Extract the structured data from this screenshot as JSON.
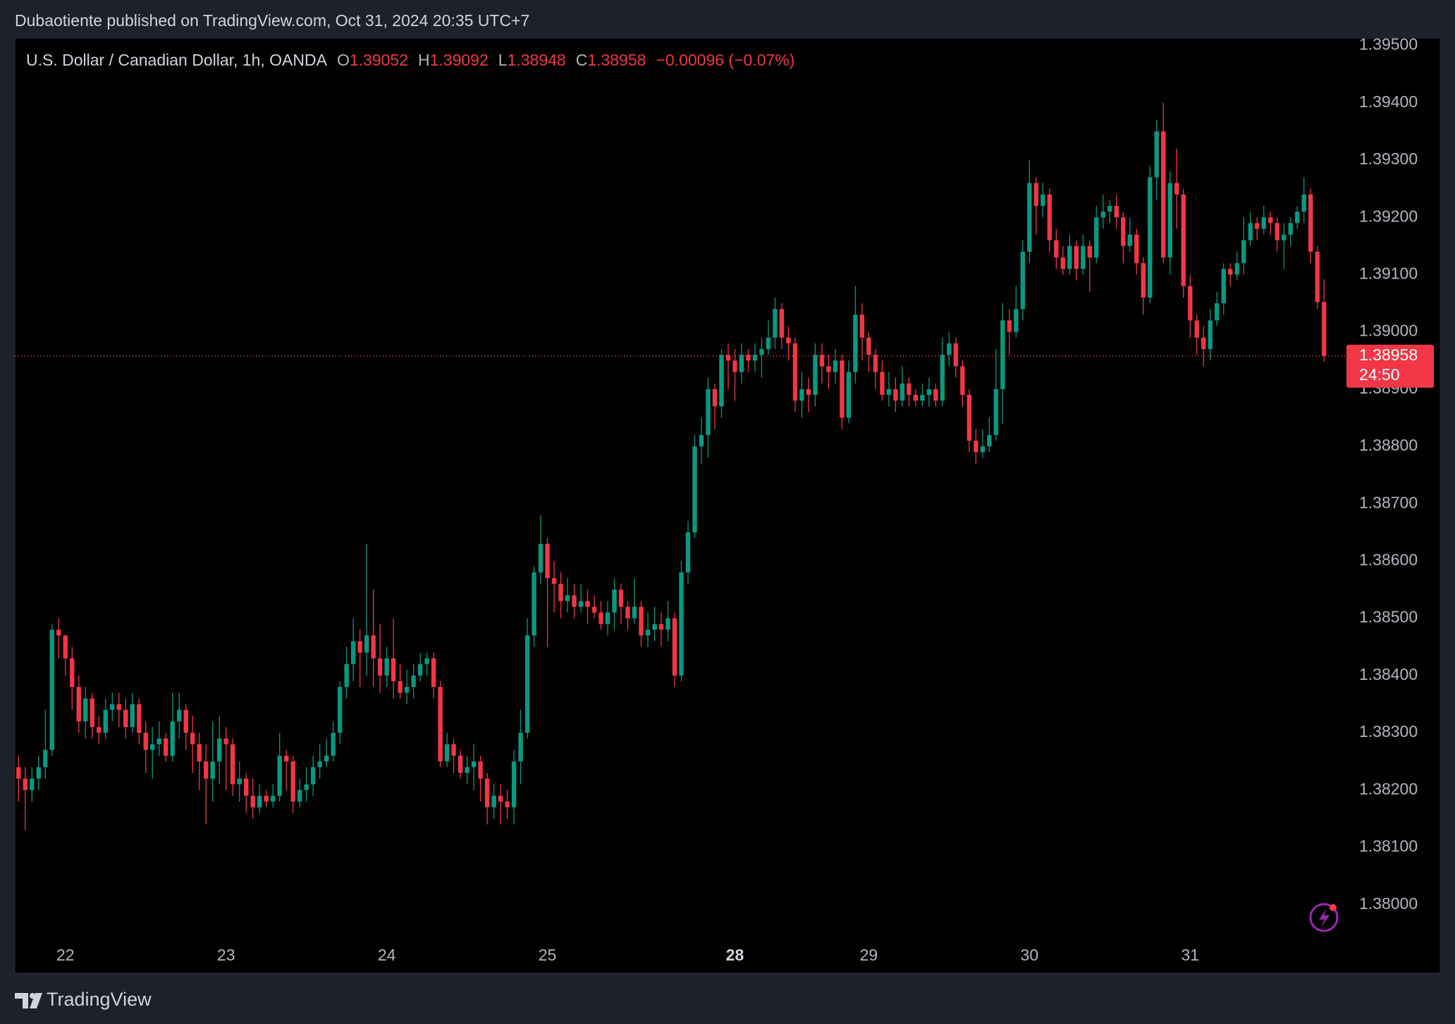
{
  "header": {
    "published": "Dubaotiente published on TradingView.com, Oct 31, 2024 20:35 UTC+7",
    "brand": "TradingView"
  },
  "chart_data": {
    "type": "candlestick",
    "legend_symbol": "U.S. Dollar / Canadian Dollar, 1h, OANDA",
    "ohlc_keys": [
      "O",
      "H",
      "L",
      "C"
    ],
    "change_label": "−0.00096 (−0.07%)",
    "countdown": "24:50",
    "up_color": "#089981",
    "down_color": "#f23645",
    "ylim": [
      1.37943,
      1.39513
    ],
    "yticks": [
      {
        "value": 1.38,
        "label": "1.38000"
      },
      {
        "value": 1.381,
        "label": "1.38100"
      },
      {
        "value": 1.382,
        "label": "1.38200"
      },
      {
        "value": 1.383,
        "label": "1.38300"
      },
      {
        "value": 1.384,
        "label": "1.38400"
      },
      {
        "value": 1.385,
        "label": "1.38500"
      },
      {
        "value": 1.386,
        "label": "1.38600"
      },
      {
        "value": 1.387,
        "label": "1.38700"
      },
      {
        "value": 1.388,
        "label": "1.38800"
      },
      {
        "value": 1.389,
        "label": "1.38900"
      },
      {
        "value": 1.39,
        "label": "1.39000"
      },
      {
        "value": 1.391,
        "label": "1.39100"
      },
      {
        "value": 1.392,
        "label": "1.39200"
      },
      {
        "value": 1.393,
        "label": "1.39300"
      },
      {
        "value": 1.394,
        "label": "1.39400"
      },
      {
        "value": 1.395,
        "label": "1.39500"
      }
    ],
    "xticks": [
      {
        "value": 7,
        "label": "22"
      },
      {
        "value": 31,
        "label": "23"
      },
      {
        "value": 55,
        "label": "24"
      },
      {
        "value": 79,
        "label": "25"
      },
      {
        "value": 107,
        "label": "28"
      },
      {
        "value": 127,
        "label": "29"
      },
      {
        "value": 151,
        "label": "30"
      },
      {
        "value": 175,
        "label": "31"
      }
    ],
    "open": [
      1.3824,
      1.3822,
      1.382,
      1.3822,
      1.3824,
      1.3827,
      1.3848,
      1.3847,
      1.3843,
      1.3838,
      1.3832,
      1.3836,
      1.3831,
      1.383,
      1.3834,
      1.3835,
      1.3834,
      1.3831,
      1.3835,
      1.383,
      1.3827,
      1.3828,
      1.3829,
      1.3826,
      1.3832,
      1.3834,
      1.383,
      1.3828,
      1.3825,
      1.3822,
      1.3825,
      1.3829,
      1.3828,
      1.3821,
      1.3822,
      1.3819,
      1.3817,
      1.3819,
      1.3818,
      1.3819,
      1.3826,
      1.3825,
      1.3818,
      1.382,
      1.3821,
      1.3824,
      1.3825,
      1.3826,
      1.383,
      1.3838,
      1.3842,
      1.3846,
      1.3844,
      1.3847,
      1.3843,
      1.384,
      1.3843,
      1.3839,
      1.3837,
      1.3838,
      1.384,
      1.3842,
      1.3843,
      1.3838,
      1.3825,
      1.3828,
      1.3826,
      1.3823,
      1.3824,
      1.3825,
      1.3822,
      1.3817,
      1.3819,
      1.3818,
      1.3817,
      1.3825,
      1.383,
      1.3847,
      1.3858,
      1.3863,
      1.3857,
      1.3856,
      1.3853,
      1.3854,
      1.3852,
      1.3853,
      1.3852,
      1.3851,
      1.3849,
      1.3851,
      1.3855,
      1.3852,
      1.385,
      1.3852,
      1.3847,
      1.3848,
      1.3849,
      1.3848,
      1.385,
      1.384,
      1.3858,
      1.3865,
      1.388,
      1.3882,
      1.389,
      1.3887,
      1.3896,
      1.3895,
      1.3893,
      1.3896,
      1.3895,
      1.3896,
      1.3897,
      1.3899,
      1.3904,
      1.3899,
      1.3898,
      1.3888,
      1.389,
      1.3889,
      1.3896,
      1.3894,
      1.3893,
      1.3895,
      1.3885,
      1.3893,
      1.3903,
      1.3899,
      1.3896,
      1.3893,
      1.3889,
      1.389,
      1.3888,
      1.3891,
      1.3889,
      1.3888,
      1.3889,
      1.389,
      1.3888,
      1.3896,
      1.3898,
      1.3894,
      1.3889,
      1.3881,
      1.3879,
      1.388,
      1.3882,
      1.389,
      1.3902,
      1.39,
      1.3904,
      1.3914,
      1.3926,
      1.3922,
      1.3924,
      1.3916,
      1.3913,
      1.3911,
      1.3915,
      1.3911,
      1.3915,
      1.3913,
      1.392,
      1.3921,
      1.3922,
      1.392,
      1.3915,
      1.3917,
      1.3912,
      1.3906,
      1.3927,
      1.3935,
      1.3913,
      1.3926,
      1.3924,
      1.3908,
      1.3902,
      1.3899,
      1.3897,
      1.3902,
      1.3905,
      1.3911,
      1.391,
      1.3912,
      1.3916,
      1.3919,
      1.3918,
      1.392,
      1.3919,
      1.3916,
      1.3917,
      1.3919,
      1.3921,
      1.3924,
      1.3914,
      1.39052
    ],
    "high": [
      1.3826,
      1.3824,
      1.3824,
      1.3826,
      1.3834,
      1.3849,
      1.385,
      1.3846,
      1.3845,
      1.384,
      1.3838,
      1.3837,
      1.3833,
      1.3836,
      1.3837,
      1.3837,
      1.3836,
      1.3837,
      1.3836,
      1.3832,
      1.3831,
      1.3832,
      1.383,
      1.3837,
      1.3837,
      1.3835,
      1.3833,
      1.383,
      1.3828,
      1.3832,
      1.3833,
      1.3831,
      1.3829,
      1.3825,
      1.3823,
      1.3822,
      1.3821,
      1.382,
      1.3821,
      1.383,
      1.3827,
      1.3826,
      1.3822,
      1.3824,
      1.3826,
      1.3828,
      1.3829,
      1.3832,
      1.3839,
      1.3845,
      1.385,
      1.3848,
      1.3863,
      1.3855,
      1.3849,
      1.3845,
      1.385,
      1.3842,
      1.3841,
      1.3842,
      1.3844,
      1.3844,
      1.3844,
      1.3839,
      1.383,
      1.3829,
      1.3827,
      1.3826,
      1.3828,
      1.3826,
      1.3823,
      1.3821,
      1.3821,
      1.382,
      1.3827,
      1.3834,
      1.385,
      1.3859,
      1.3868,
      1.3864,
      1.386,
      1.3858,
      1.3857,
      1.3856,
      1.3856,
      1.3855,
      1.3854,
      1.3853,
      1.3853,
      1.3857,
      1.3856,
      1.3853,
      1.3857,
      1.3853,
      1.3851,
      1.3852,
      1.3851,
      1.3853,
      1.3851,
      1.386,
      1.3867,
      1.3882,
      1.3885,
      1.3892,
      1.3891,
      1.3897,
      1.3898,
      1.3897,
      1.3898,
      1.3897,
      1.3898,
      1.3899,
      1.3902,
      1.3906,
      1.3905,
      1.3901,
      1.3899,
      1.3893,
      1.3892,
      1.3898,
      1.3898,
      1.3896,
      1.3897,
      1.3896,
      1.3895,
      1.3908,
      1.3905,
      1.39,
      1.3897,
      1.3895,
      1.3893,
      1.3892,
      1.3894,
      1.3892,
      1.389,
      1.3891,
      1.3892,
      1.3891,
      1.3899,
      1.39,
      1.3899,
      1.3895,
      1.389,
      1.3883,
      1.3883,
      1.3885,
      1.3897,
      1.3905,
      1.3904,
      1.3908,
      1.3916,
      1.393,
      1.3927,
      1.3926,
      1.3925,
      1.3918,
      1.3915,
      1.3917,
      1.3916,
      1.3917,
      1.3916,
      1.3922,
      1.3924,
      1.3923,
      1.3924,
      1.3921,
      1.392,
      1.3918,
      1.3913,
      1.3929,
      1.3937,
      1.394,
      1.3928,
      1.3932,
      1.3925,
      1.391,
      1.3903,
      1.3901,
      1.3904,
      1.3907,
      1.3912,
      1.3912,
      1.3914,
      1.392,
      1.3921,
      1.392,
      1.3922,
      1.3921,
      1.392,
      1.3919,
      1.392,
      1.3922,
      1.3927,
      1.3925,
      1.3915,
      1.39092
    ],
    "low": [
      1.3818,
      1.3813,
      1.3818,
      1.382,
      1.3822,
      1.3826,
      1.3843,
      1.384,
      1.3834,
      1.383,
      1.3829,
      1.3829,
      1.3828,
      1.3829,
      1.3832,
      1.3831,
      1.3829,
      1.383,
      1.3828,
      1.3823,
      1.3822,
      1.3826,
      1.3825,
      1.3825,
      1.3829,
      1.3827,
      1.3823,
      1.382,
      1.3814,
      1.3818,
      1.3821,
      1.382,
      1.3819,
      1.3818,
      1.3816,
      1.3815,
      1.3816,
      1.3817,
      1.3817,
      1.3818,
      1.382,
      1.3816,
      1.3817,
      1.3818,
      1.3819,
      1.3822,
      1.3824,
      1.3825,
      1.3828,
      1.3836,
      1.3839,
      1.3838,
      1.384,
      1.3838,
      1.3837,
      1.3838,
      1.3836,
      1.3836,
      1.3835,
      1.3836,
      1.3839,
      1.384,
      1.3836,
      1.3824,
      1.3824,
      1.3823,
      1.3822,
      1.3821,
      1.382,
      1.3818,
      1.3814,
      1.3815,
      1.3814,
      1.3815,
      1.3814,
      1.3821,
      1.3829,
      1.3845,
      1.3856,
      1.3845,
      1.3851,
      1.385,
      1.3851,
      1.385,
      1.3851,
      1.3849,
      1.385,
      1.3848,
      1.3847,
      1.3848,
      1.3849,
      1.3848,
      1.3849,
      1.3845,
      1.3845,
      1.3846,
      1.3845,
      1.3846,
      1.3838,
      1.3839,
      1.3856,
      1.3864,
      1.3877,
      1.3878,
      1.3883,
      1.3885,
      1.389,
      1.3888,
      1.3891,
      1.3893,
      1.3893,
      1.3892,
      1.3896,
      1.3897,
      1.3897,
      1.3895,
      1.3886,
      1.3885,
      1.3886,
      1.3887,
      1.3891,
      1.389,
      1.3891,
      1.3883,
      1.3884,
      1.3891,
      1.3895,
      1.3893,
      1.389,
      1.3888,
      1.3887,
      1.3886,
      1.3887,
      1.3887,
      1.3887,
      1.3887,
      1.3887,
      1.3887,
      1.3887,
      1.3894,
      1.3892,
      1.3887,
      1.3879,
      1.3877,
      1.3878,
      1.3879,
      1.3881,
      1.3884,
      1.3896,
      1.3899,
      1.3902,
      1.3912,
      1.3917,
      1.392,
      1.3914,
      1.3911,
      1.391,
      1.391,
      1.3909,
      1.391,
      1.3907,
      1.3912,
      1.3918,
      1.3919,
      1.3918,
      1.3912,
      1.3914,
      1.391,
      1.3903,
      1.3905,
      1.3923,
      1.3912,
      1.391,
      1.3918,
      1.3906,
      1.3899,
      1.3896,
      1.3894,
      1.3895,
      1.3901,
      1.3903,
      1.3908,
      1.3909,
      1.391,
      1.3915,
      1.3916,
      1.3917,
      1.3917,
      1.3914,
      1.3911,
      1.3915,
      1.3918,
      1.3919,
      1.3912,
      1.3904,
      1.38948
    ],
    "close": [
      1.3822,
      1.382,
      1.3822,
      1.3824,
      1.3827,
      1.3848,
      1.3847,
      1.3843,
      1.3838,
      1.3832,
      1.3836,
      1.3831,
      1.383,
      1.3834,
      1.3835,
      1.3834,
      1.3831,
      1.3835,
      1.383,
      1.3827,
      1.3828,
      1.3829,
      1.3826,
      1.3832,
      1.3834,
      1.383,
      1.3828,
      1.3825,
      1.3822,
      1.3825,
      1.3829,
      1.3828,
      1.3821,
      1.3822,
      1.3819,
      1.3817,
      1.3819,
      1.3818,
      1.3819,
      1.3826,
      1.3825,
      1.3818,
      1.382,
      1.3821,
      1.3824,
      1.3825,
      1.3826,
      1.383,
      1.3838,
      1.3842,
      1.3846,
      1.3844,
      1.3847,
      1.3843,
      1.384,
      1.3843,
      1.3839,
      1.3837,
      1.3838,
      1.384,
      1.3842,
      1.3843,
      1.3838,
      1.3825,
      1.3828,
      1.3826,
      1.3823,
      1.3824,
      1.3825,
      1.3822,
      1.3817,
      1.3819,
      1.3818,
      1.3817,
      1.3825,
      1.383,
      1.3847,
      1.3858,
      1.3863,
      1.3857,
      1.3856,
      1.3853,
      1.3854,
      1.3852,
      1.3853,
      1.3852,
      1.3851,
      1.3849,
      1.3851,
      1.3855,
      1.3852,
      1.385,
      1.3852,
      1.3847,
      1.3848,
      1.3849,
      1.3848,
      1.385,
      1.384,
      1.3858,
      1.3865,
      1.388,
      1.3882,
      1.389,
      1.3887,
      1.3896,
      1.3895,
      1.3893,
      1.3896,
      1.3895,
      1.3896,
      1.3897,
      1.3899,
      1.3904,
      1.3899,
      1.3898,
      1.3888,
      1.389,
      1.3889,
      1.3896,
      1.3894,
      1.3893,
      1.3895,
      1.3885,
      1.3893,
      1.3903,
      1.3899,
      1.3896,
      1.3893,
      1.3889,
      1.389,
      1.3888,
      1.3891,
      1.3889,
      1.3888,
      1.3889,
      1.389,
      1.3888,
      1.3896,
      1.3898,
      1.3894,
      1.3889,
      1.3881,
      1.3879,
      1.388,
      1.3882,
      1.389,
      1.3902,
      1.39,
      1.3904,
      1.3914,
      1.3926,
      1.3922,
      1.3924,
      1.3916,
      1.3913,
      1.3911,
      1.3915,
      1.3911,
      1.3915,
      1.3913,
      1.392,
      1.3921,
      1.3922,
      1.392,
      1.3915,
      1.3917,
      1.3912,
      1.3906,
      1.3927,
      1.3935,
      1.3913,
      1.3926,
      1.3924,
      1.3908,
      1.3902,
      1.3899,
      1.3897,
      1.3902,
      1.3905,
      1.3911,
      1.391,
      1.3912,
      1.3916,
      1.3919,
      1.3918,
      1.392,
      1.3919,
      1.3916,
      1.3917,
      1.3919,
      1.3921,
      1.3924,
      1.3914,
      1.39052,
      1.38958
    ]
  }
}
